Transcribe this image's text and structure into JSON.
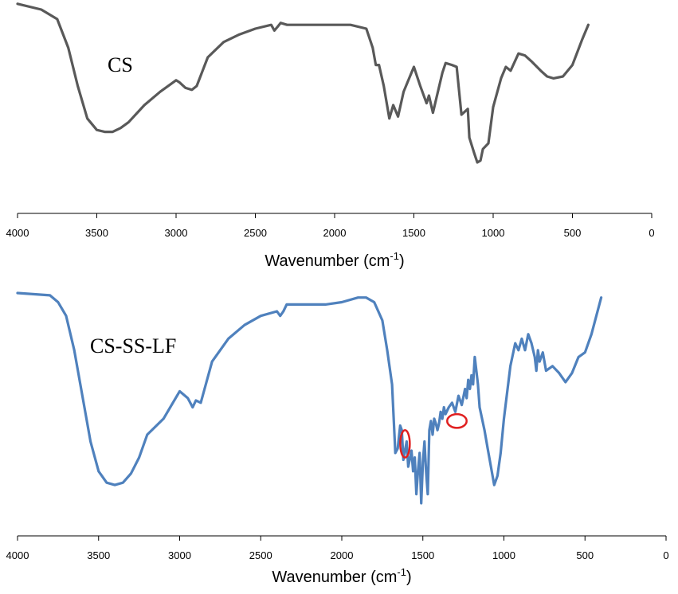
{
  "chart_data": [
    {
      "type": "line",
      "series_label": "CS",
      "xlabel": "Wavenumber (cm",
      "xlabel_sup": "-1",
      "xlabel_close": ")",
      "xlim": [
        4000,
        0
      ],
      "x_reversed": true,
      "xticks": [
        4000,
        3500,
        3000,
        2500,
        2000,
        1500,
        1000,
        500,
        0
      ],
      "xtick_labels": [
        "4000",
        "3500",
        "3000",
        "2500",
        "2000",
        "1500",
        "1000",
        "500",
        "0"
      ],
      "ylim": [
        0,
        100
      ],
      "y_axis_shown": false,
      "grid": false,
      "line_color": "#595959",
      "series": [
        {
          "x": [
            4000,
            3850,
            3750,
            3680,
            3620,
            3560,
            3500,
            3450,
            3400,
            3350,
            3300,
            3200,
            3100,
            3000,
            2980,
            2940,
            2900,
            2870,
            2800,
            2700,
            2600,
            2500,
            2400,
            2380,
            2360,
            2340,
            2300,
            2200,
            2100,
            2000,
            1900,
            1800,
            1760,
            1740,
            1720,
            1690,
            1655,
            1630,
            1600,
            1565,
            1500,
            1460,
            1420,
            1405,
            1380,
            1320,
            1300,
            1260,
            1230,
            1200,
            1160,
            1150,
            1120,
            1100,
            1080,
            1065,
            1030,
            1000,
            950,
            920,
            890,
            840,
            800,
            760,
            700,
            660,
            620,
            560,
            500,
            440,
            400
          ],
          "y": [
            98,
            95,
            90,
            75,
            55,
            38,
            32,
            31,
            31,
            33,
            36,
            45,
            52,
            58,
            57,
            54,
            53,
            55,
            70,
            78,
            82,
            85,
            87,
            84,
            86,
            88,
            87,
            87,
            87,
            87,
            87,
            85,
            75,
            66,
            66,
            55,
            38,
            45,
            39,
            52,
            65,
            55,
            46,
            50,
            41,
            62,
            67,
            66,
            65,
            40,
            43,
            28,
            20,
            15,
            16,
            22,
            25,
            44,
            59,
            65,
            63,
            72,
            71,
            68,
            63,
            60,
            59,
            60,
            66,
            79,
            87
          ]
        }
      ]
    },
    {
      "type": "line",
      "series_label": "CS-SS-LF",
      "xlabel": "Wavenumber (cm",
      "xlabel_sup": "-1",
      "xlabel_close": ")",
      "xlim": [
        4000,
        0
      ],
      "x_reversed": true,
      "xticks": [
        4000,
        3500,
        3000,
        2500,
        2000,
        1500,
        1000,
        500,
        0
      ],
      "xtick_labels": [
        "4000",
        "3500",
        "3000",
        "2500",
        "2000",
        "1500",
        "1000",
        "500",
        "0"
      ],
      "ylim": [
        0,
        100
      ],
      "y_axis_shown": false,
      "grid": false,
      "line_color": "#4f81bd",
      "annotation_color": "#e02020",
      "annotations": [
        {
          "type": "ellipse",
          "x": 1610,
          "y": 34,
          "rx_cm": 20,
          "ry": 6
        },
        {
          "type": "ellipse",
          "x": 1290,
          "y": 44,
          "rx_cm": 60,
          "ry": 3
        }
      ],
      "series": [
        {
          "x": [
            4000,
            3800,
            3750,
            3700,
            3650,
            3600,
            3550,
            3500,
            3450,
            3400,
            3350,
            3300,
            3250,
            3200,
            3100,
            3000,
            2950,
            2920,
            2900,
            2870,
            2800,
            2700,
            2600,
            2500,
            2400,
            2380,
            2360,
            2340,
            2300,
            2200,
            2100,
            2000,
            1900,
            1850,
            1800,
            1750,
            1720,
            1690,
            1670,
            1655,
            1640,
            1630,
            1620,
            1600,
            1590,
            1570,
            1560,
            1550,
            1540,
            1530,
            1520,
            1510,
            1500,
            1490,
            1480,
            1470,
            1460,
            1450,
            1440,
            1430,
            1420,
            1410,
            1400,
            1390,
            1380,
            1370,
            1360,
            1340,
            1320,
            1300,
            1280,
            1260,
            1240,
            1230,
            1220,
            1210,
            1200,
            1190,
            1180,
            1170,
            1160,
            1150,
            1120,
            1100,
            1080,
            1060,
            1040,
            1020,
            1000,
            960,
            930,
            910,
            890,
            870,
            850,
            830,
            810,
            800,
            790,
            780,
            760,
            740,
            700,
            660,
            620,
            580,
            540,
            500,
            460,
            400
          ],
          "y": [
            100,
            99,
            96,
            90,
            75,
            55,
            35,
            22,
            17,
            16,
            17,
            21,
            28,
            38,
            45,
            57,
            54,
            50,
            53,
            52,
            70,
            80,
            86,
            90,
            92,
            90,
            92,
            95,
            95,
            95,
            95,
            96,
            98,
            98,
            96,
            88,
            75,
            60,
            30,
            32,
            42,
            40,
            27,
            35,
            24,
            31,
            22,
            28,
            12,
            22,
            30,
            8,
            26,
            35,
            22,
            12,
            40,
            44,
            38,
            45,
            43,
            40,
            43,
            48,
            45,
            50,
            47,
            50,
            52,
            48,
            55,
            51,
            58,
            54,
            62,
            58,
            64,
            60,
            72,
            66,
            60,
            50,
            40,
            32,
            24,
            16,
            20,
            30,
            45,
            68,
            78,
            75,
            80,
            75,
            82,
            78,
            72,
            66,
            75,
            70,
            74,
            66,
            68,
            65,
            61,
            65,
            72,
            74,
            82,
            98
          ]
        }
      ]
    }
  ]
}
